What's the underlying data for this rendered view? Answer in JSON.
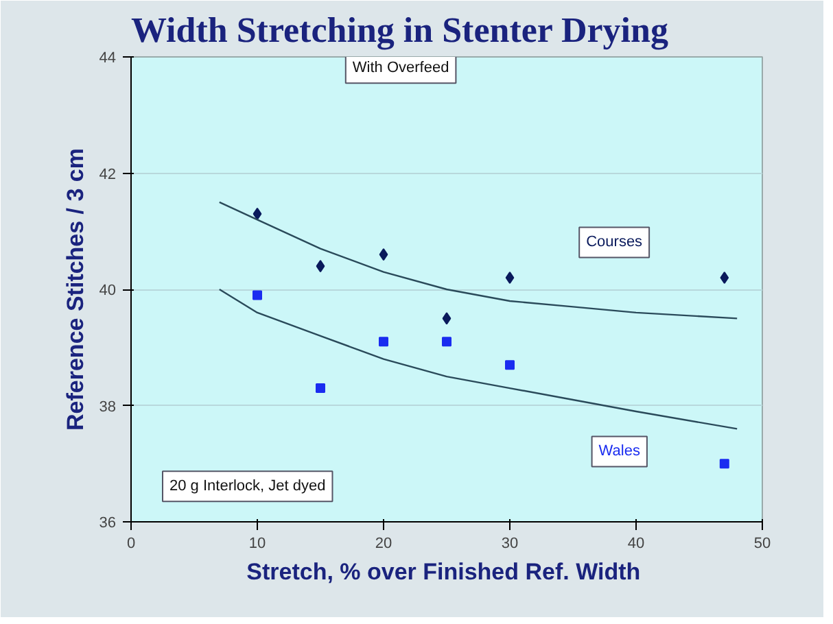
{
  "chart_data": {
    "type": "scatter",
    "title": "Width Stretching in Stenter Drying",
    "xlabel": "Stretch,  % over Finished Ref. Width",
    "ylabel": "Reference Stitches / 3 cm",
    "xlim": [
      0,
      50
    ],
    "xticks": [
      0,
      10,
      20,
      30,
      40,
      50
    ],
    "ylim": [
      36,
      44
    ],
    "yticks": [
      36,
      38,
      40,
      42,
      44
    ],
    "grid": "y",
    "annotations": [
      "With Overfeed",
      "20 g Interlock, Jet dyed"
    ],
    "series": [
      {
        "name": "Courses",
        "color": "#0a1a5c",
        "marker": "diamond",
        "x": [
          10,
          15,
          20,
          25,
          30,
          47
        ],
        "values": [
          41.3,
          40.4,
          40.6,
          39.5,
          40.2,
          40.2
        ]
      },
      {
        "name": "Wales",
        "color": "#1a2cf0",
        "marker": "square",
        "x": [
          10,
          15,
          20,
          25,
          30,
          47
        ],
        "values": [
          39.9,
          38.3,
          39.1,
          39.1,
          38.7,
          37.0
        ]
      },
      {
        "type": "line",
        "color": "#2a4a5a",
        "marker": "none",
        "x": [
          7,
          10,
          15,
          20,
          25,
          30,
          35,
          40,
          48
        ],
        "values": [
          41.5,
          41.2,
          40.7,
          40.3,
          40.0,
          39.8,
          39.7,
          39.6,
          39.5
        ]
      },
      {
        "type": "line",
        "color": "#2a4a5a",
        "marker": "none",
        "x": [
          7,
          10,
          15,
          20,
          25,
          30,
          35,
          40,
          48
        ],
        "values": [
          40.0,
          39.6,
          39.2,
          38.8,
          38.5,
          38.3,
          38.1,
          37.9,
          37.6
        ]
      }
    ]
  }
}
